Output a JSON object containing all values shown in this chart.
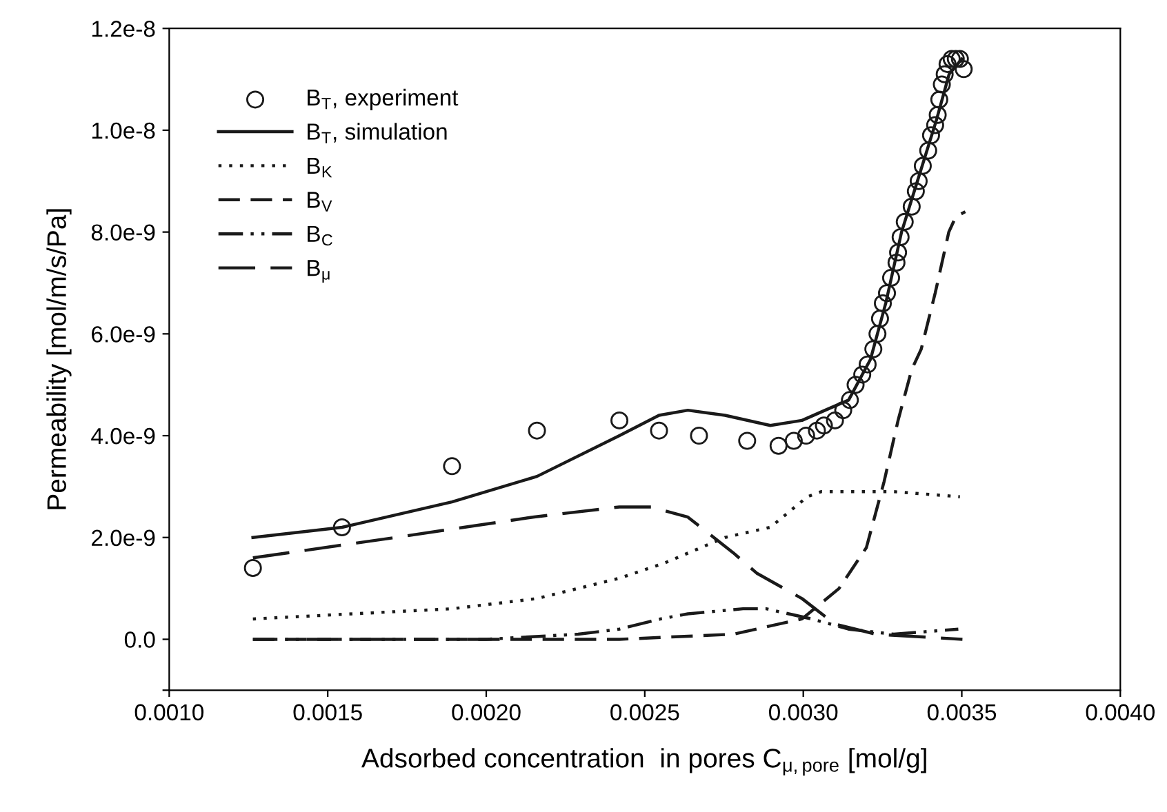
{
  "chart_data": {
    "type": "line",
    "xlabel": "Adsorbed concentration  in pores C$_{μ,pore}$ [mol/g]",
    "ylabel": "Permeability [mol/m/s/Pa]",
    "xlim": [
      0.001,
      0.004
    ],
    "xticks": [
      {
        "value": 0.001,
        "label": "0.0010"
      },
      {
        "value": 0.0015,
        "label": "0.0015"
      },
      {
        "value": 0.002,
        "label": "0.0020"
      },
      {
        "value": 0.0025,
        "label": "0.0025"
      },
      {
        "value": 0.003,
        "label": "0.0030"
      },
      {
        "value": 0.0035,
        "label": "0.0035"
      },
      {
        "value": 0.004,
        "label": "0.0040"
      }
    ],
    "ylim": [
      -1e-09,
      1.2e-08
    ],
    "yticks": [
      {
        "value": -1e-09,
        "label": null
      },
      {
        "value": 0,
        "label": "0.0"
      },
      {
        "value": 2e-09,
        "label": "2.0e-9"
      },
      {
        "value": 4e-09,
        "label": "4.0e-9"
      },
      {
        "value": 6e-09,
        "label": "6.0e-9"
      },
      {
        "value": 8e-09,
        "label": "8.0e-9"
      },
      {
        "value": 1e-08,
        "label": "1.0e-8"
      },
      {
        "value": 1.2e-08,
        "label": "1.2e-8"
      }
    ],
    "grid": false,
    "legend": "top left",
    "series": [
      {
        "name": "B$_{T}$, experiment",
        "type": "scatter",
        "marker": "circle",
        "color": "#1a1a1a",
        "x": [
          0.001264,
          0.001545,
          0.001892,
          0.00216,
          0.00242,
          0.002545,
          0.002671,
          0.002823,
          0.002922,
          0.00297,
          0.003009,
          0.003043,
          0.003065,
          0.0031,
          0.003126,
          0.003147,
          0.003165,
          0.003186,
          0.003203,
          0.003221,
          0.003234,
          0.003242,
          0.003251,
          0.003264,
          0.003277,
          0.003294,
          0.003299,
          0.003307,
          0.00332,
          0.003342,
          0.003355,
          0.003364,
          0.003377,
          0.003394,
          0.003403,
          0.003416,
          0.003424,
          0.003429,
          0.003437,
          0.003446,
          0.003455,
          0.003468,
          0.003481,
          0.003494,
          0.003506
        ],
        "values": [
          1.4e-09,
          2.2e-09,
          3.4e-09,
          4.1e-09,
          4.3e-09,
          4.1e-09,
          4e-09,
          3.9e-09,
          3.8e-09,
          3.9e-09,
          4e-09,
          4.1e-09,
          4.2e-09,
          4.3e-09,
          4.5e-09,
          4.7e-09,
          5e-09,
          5.2e-09,
          5.4e-09,
          5.7e-09,
          6e-09,
          6.3e-09,
          6.6e-09,
          6.8e-09,
          7.1e-09,
          7.4e-09,
          7.6e-09,
          7.9e-09,
          8.2e-09,
          8.5e-09,
          8.8e-09,
          9e-09,
          9.3e-09,
          9.6e-09,
          9.9e-09,
          1.01e-08,
          1.03e-08,
          1.06e-08,
          1.09e-08,
          1.11e-08,
          1.13e-08,
          1.14e-08,
          1.14e-08,
          1.14e-08,
          1.12e-08
        ]
      },
      {
        "name": "B$_{T}$, simulation",
        "line_style": "solid",
        "color": "#1a1a1a",
        "x": [
          0.001264,
          0.001545,
          0.001892,
          0.00216,
          0.00242,
          0.002545,
          0.002636,
          0.002753,
          0.002896,
          0.002996,
          0.003069,
          0.003143,
          0.003212,
          0.00326,
          0.00331,
          0.00336,
          0.00342,
          0.00346,
          0.0035
        ],
        "values": [
          2e-09,
          2.2e-09,
          2.7e-09,
          3.2e-09,
          4e-09,
          4.4e-09,
          4.5e-09,
          4.4e-09,
          4.2e-09,
          4.3e-09,
          4.5e-09,
          4.7e-09,
          5.5e-09,
          6.6e-09,
          8e-09,
          9e-09,
          1.02e-08,
          1.11e-08,
          1.14e-08
        ]
      },
      {
        "name": "B$_{K}$",
        "line_style": "dotted",
        "color": "#1a1a1a",
        "x": [
          0.001264,
          0.001892,
          0.00216,
          0.00242,
          0.002563,
          0.002753,
          0.002896,
          0.003013,
          0.003056,
          0.003286,
          0.003494
        ],
        "values": [
          4e-10,
          6e-10,
          8e-10,
          1.2e-09,
          1.5e-09,
          2e-09,
          2.2e-09,
          2.8e-09,
          2.9e-09,
          2.9e-09,
          2.8e-09
        ]
      },
      {
        "name": "B$_{V}$",
        "line_style": "dashed",
        "color": "#1a1a1a",
        "x": [
          0.001264,
          0.002,
          0.00242,
          0.002779,
          0.002996,
          0.003113,
          0.003199,
          0.003255,
          0.003299,
          0.003342,
          0.003372,
          0.003416,
          0.003459,
          0.003481,
          0.003511
        ],
        "values": [
          0,
          0,
          0,
          1e-10,
          4e-10,
          1e-09,
          1.8e-09,
          3.1e-09,
          4.3e-09,
          5.3e-09,
          5.7e-09,
          6.8e-09,
          8e-09,
          8.3e-09,
          8.4e-09
        ]
      },
      {
        "name": "B$_{C}$",
        "line_style": "dashdotdot",
        "color": "#1a1a1a",
        "x": [
          0.001264,
          0.002,
          0.00229,
          0.00242,
          0.00255,
          0.002636,
          0.00281,
          0.002883,
          0.003026,
          0.003143,
          0.003286,
          0.003489
        ],
        "values": [
          0,
          0,
          1e-10,
          2e-10,
          4e-10,
          5e-10,
          6e-10,
          6e-10,
          4e-10,
          2e-10,
          1e-10,
          2e-10
        ]
      },
      {
        "name": "B$_{μ}$",
        "line_style": "longdash",
        "color": "#1a1a1a",
        "x": [
          0.001264,
          0.001714,
          0.002147,
          0.00242,
          0.00252,
          0.002636,
          0.002779,
          0.002853,
          0.002996,
          0.0031,
          0.003229,
          0.003502
        ],
        "values": [
          1.6e-09,
          2e-09,
          2.4e-09,
          2.6e-09,
          2.6e-09,
          2.4e-09,
          1.7e-09,
          1.3e-09,
          8e-10,
          3e-10,
          1e-10,
          0
        ]
      }
    ]
  }
}
